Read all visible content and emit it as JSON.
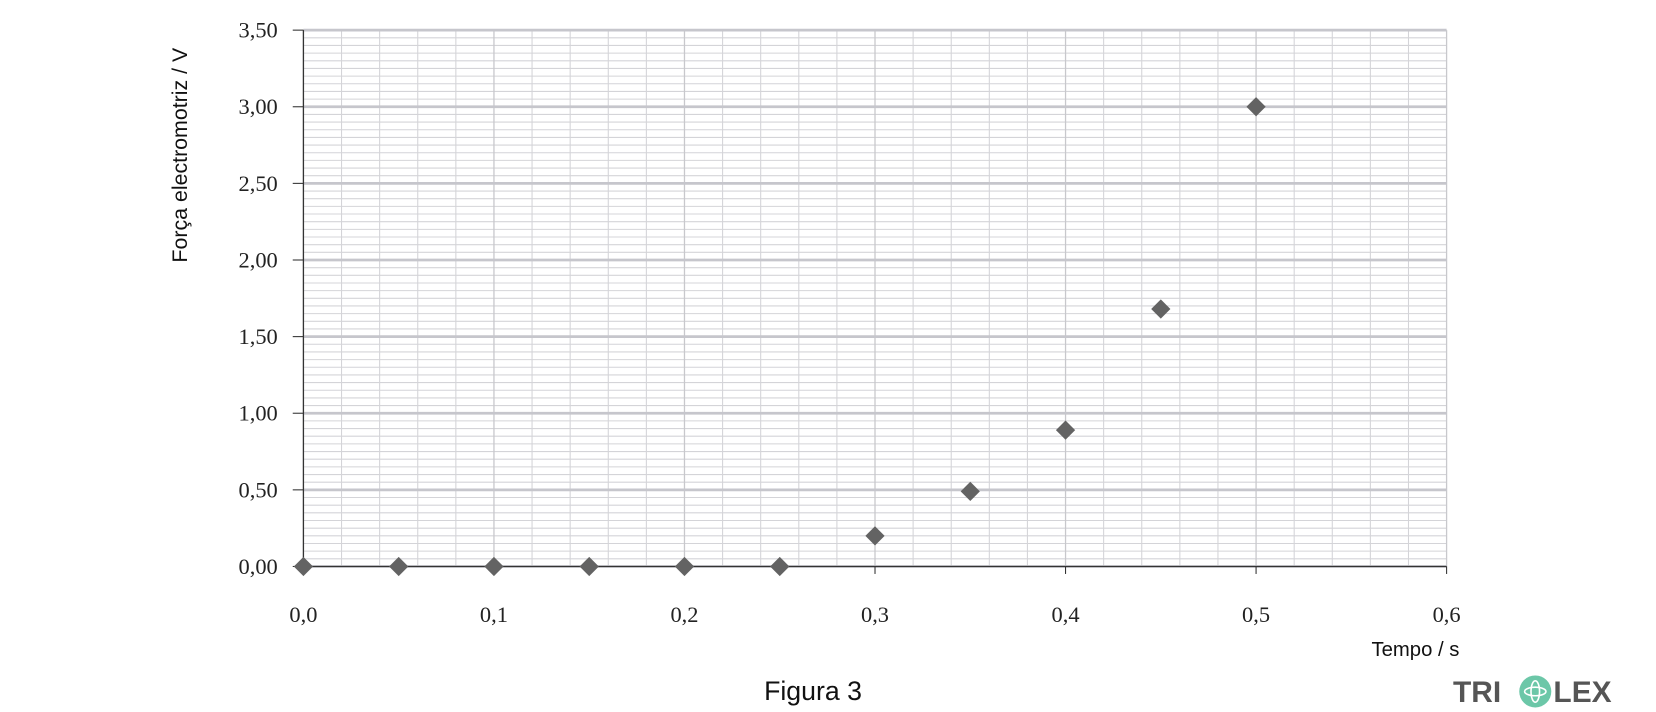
{
  "chart_data": {
    "type": "scatter",
    "caption": "Figura 3",
    "xlabel": "Tempo / s",
    "ylabel": "Força electromotriz / V",
    "x": [
      0,
      0.05,
      0.1,
      0.15,
      0.2,
      0.25,
      0.3,
      0.35,
      0.4,
      0.45,
      0.5
    ],
    "series": [
      {
        "color": "#636363",
        "values": [
          0,
          0,
          0,
          0,
          0,
          0,
          0.2,
          0.49,
          0.89,
          1.68,
          3.0
        ]
      }
    ],
    "xlim": [
      0,
      0.6
    ],
    "xticks": [
      {
        "value": 0,
        "label": "0,0"
      },
      {
        "value": 0.1,
        "label": "0,1"
      },
      {
        "value": 0.2,
        "label": "0,2"
      },
      {
        "value": 0.3,
        "label": "0,3"
      },
      {
        "value": 0.4,
        "label": "0,4"
      },
      {
        "value": 0.5,
        "label": "0,5"
      },
      {
        "value": 0.6,
        "label": "0,6"
      }
    ],
    "ylim": [
      0,
      3.5
    ],
    "yticks": [
      {
        "value": 0,
        "label": "0,00"
      },
      {
        "value": 0.5,
        "label": "0,50"
      },
      {
        "value": 1.0,
        "label": "1,00"
      },
      {
        "value": 1.5,
        "label": "1,50"
      },
      {
        "value": 2.0,
        "label": "2,00"
      },
      {
        "value": 2.5,
        "label": "2,50"
      },
      {
        "value": 3.0,
        "label": "3,00"
      },
      {
        "value": 3.5,
        "label": "3,50"
      }
    ],
    "grid": true,
    "x_minor_divisions": 5,
    "y_minor_divisions": 10,
    "watermark": [
      "TRI",
      "LEX"
    ]
  }
}
